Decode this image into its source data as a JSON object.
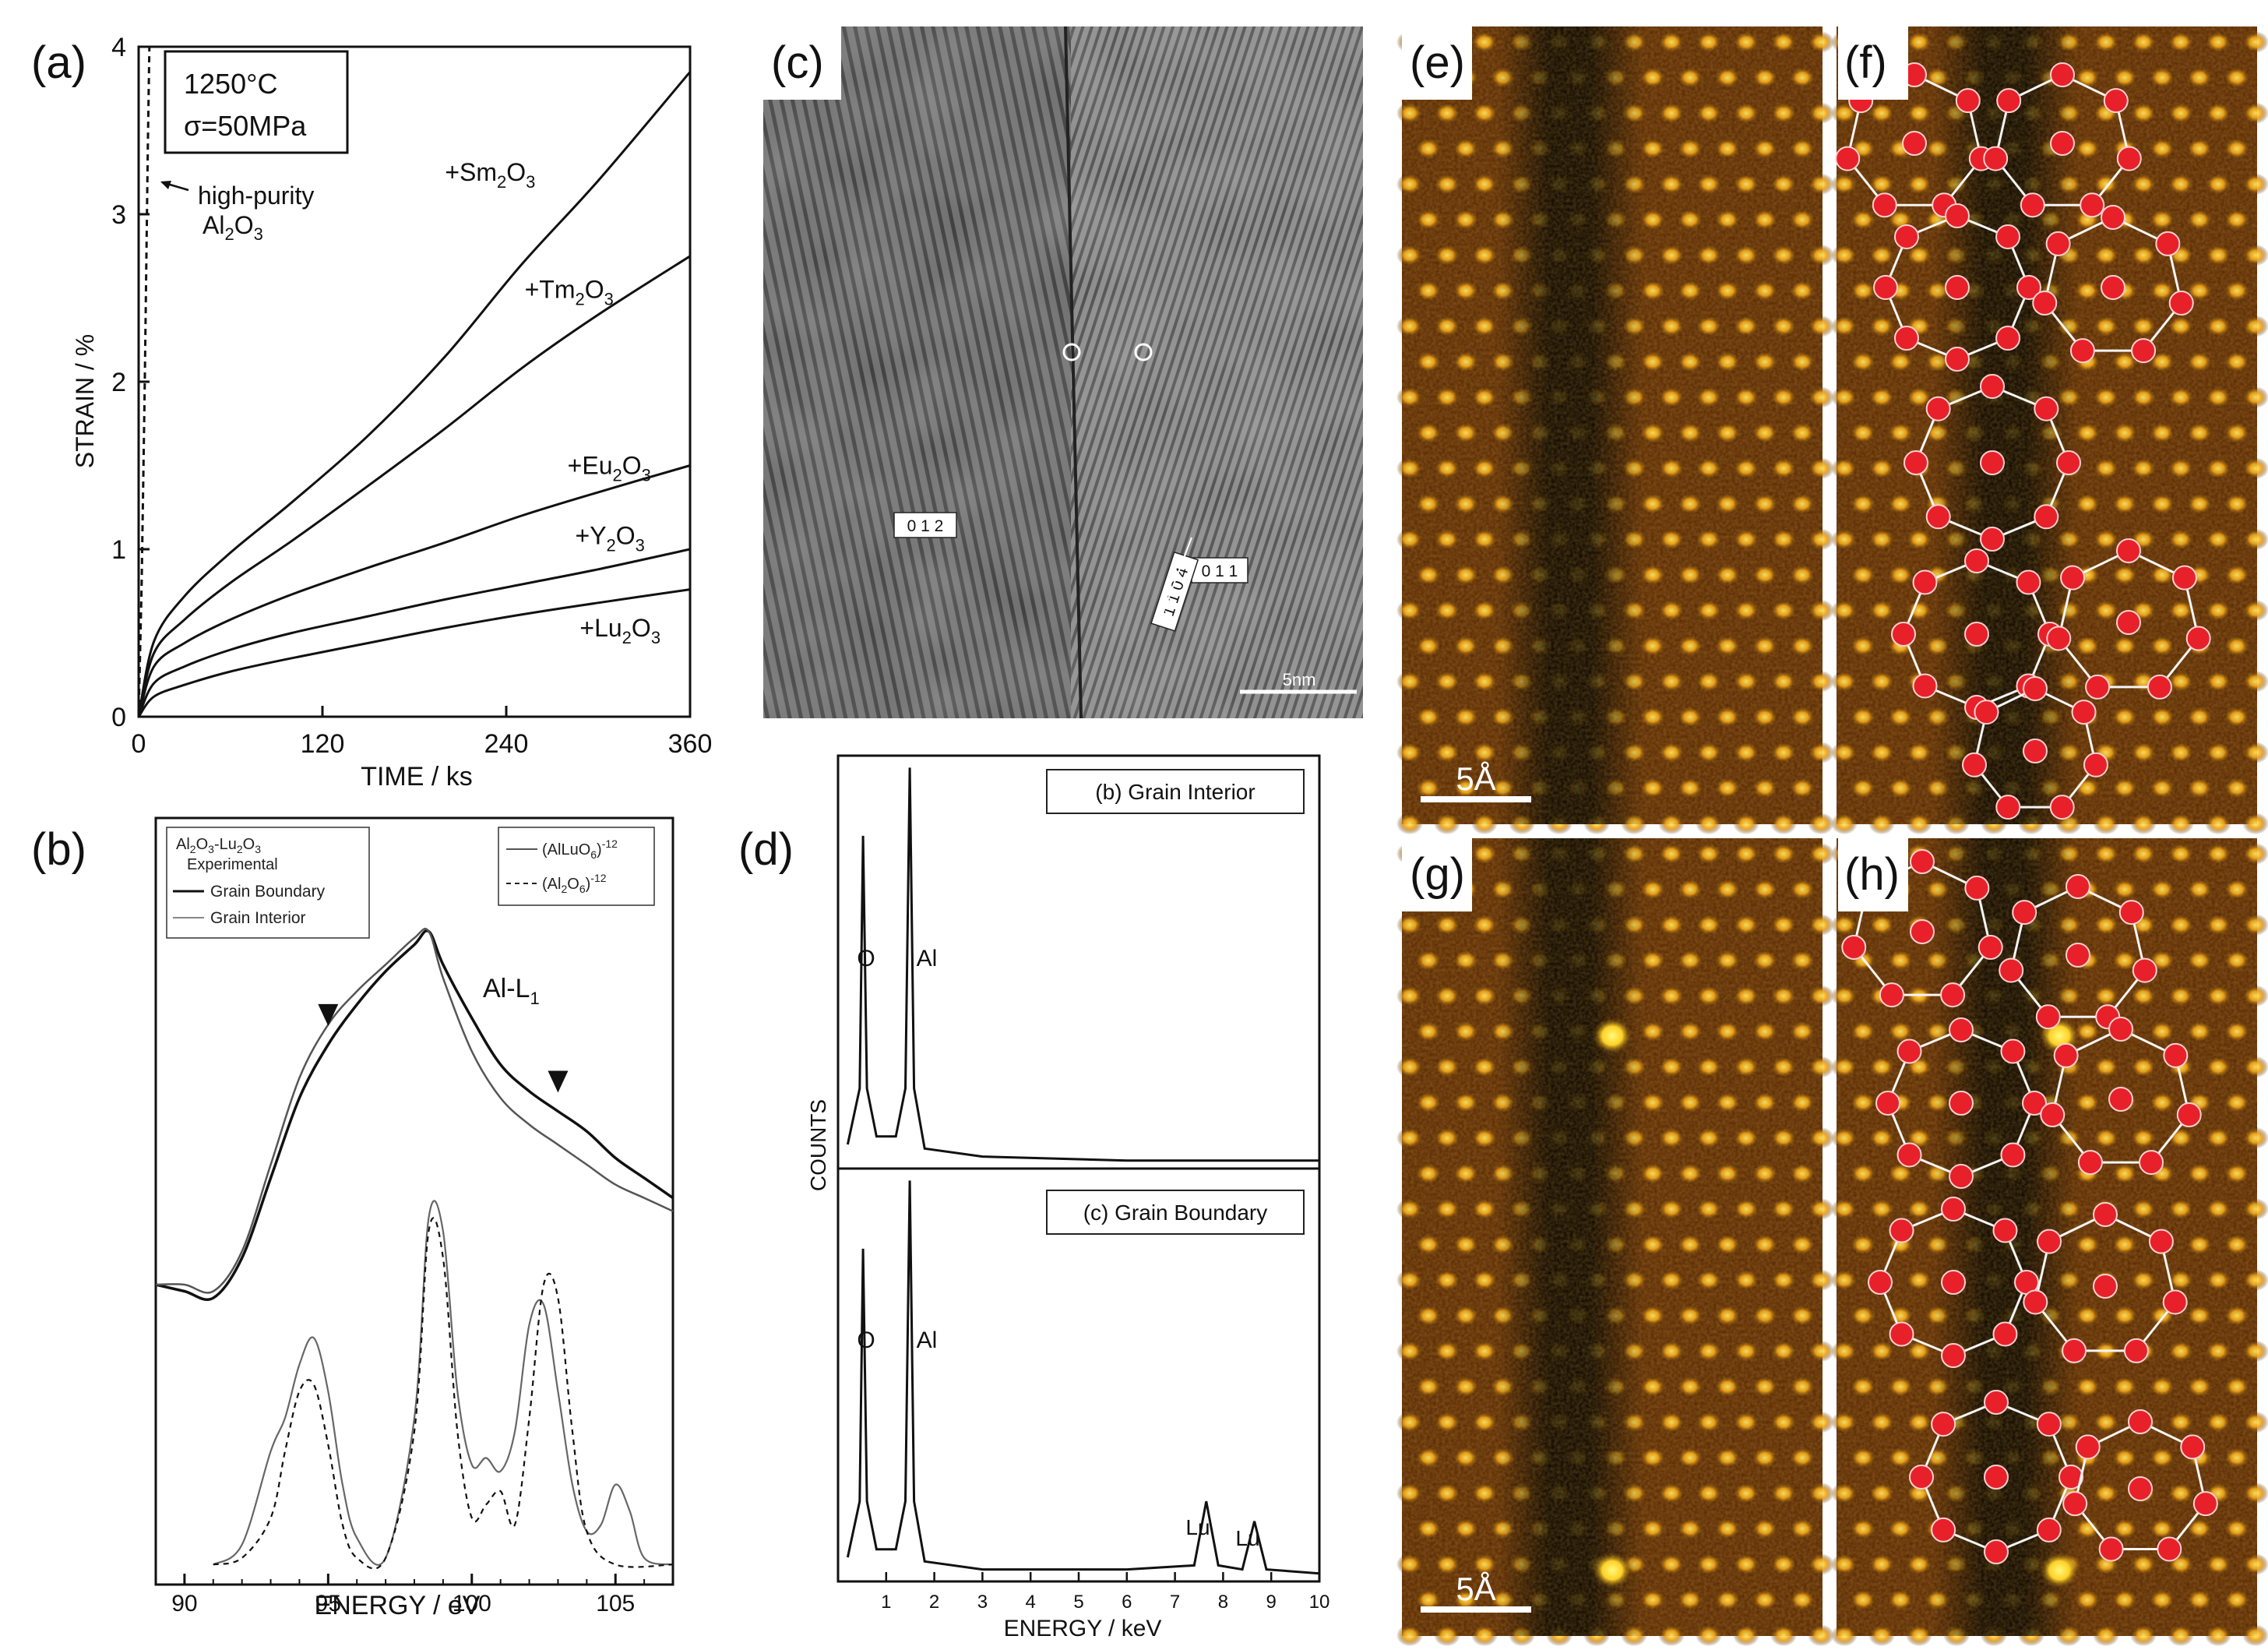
{
  "panel_labels": {
    "a": "(a)",
    "b": "(b)",
    "c": "(c)",
    "d": "(d)",
    "e": "(e)",
    "f": "(f)",
    "g": "(g)",
    "h": "(h)"
  },
  "panel_a": {
    "box_line1": "1250°C",
    "box_line2_sym": "σ",
    "box_line2_rest": "=50MPa",
    "annotation_line1": "high-purity",
    "annotation_line2_a": "Al",
    "annotation_line2_sub": "2",
    "annotation_line2_b": "O",
    "annotation_line2_sub2": "3"
  },
  "panel_b": {
    "legend_left_title_a": "Al",
    "legend_left_title_sub1": "2",
    "legend_left_title_b": "O",
    "legend_left_title_sub2": "3",
    "legend_left_title_c": "-Lu",
    "legend_left_title_sub3": "2",
    "legend_left_title_d": "O",
    "legend_left_title_sub4": "3",
    "legend_left_subtitle": "Experimental",
    "legend_left_entries": [
      "Grain Boundary",
      "Grain Interior"
    ],
    "legend_right_entries": [
      {
        "base": "(AlLuO",
        "sub": "6",
        "close": ")",
        "sup": "-12"
      },
      {
        "base": "(Al",
        "sub": "2",
        "mid": "O",
        "sub2": "6",
        "close": ")",
        "sup": "-12"
      }
    ],
    "edge_label": "Al-L",
    "edge_label_sub": "1"
  },
  "panel_c": {
    "indices": [
      "0 1 2",
      "0 1 1",
      "1 1 0 4"
    ],
    "scale_label": "5nm"
  },
  "panel_d": {
    "ylabel": "COUNTS",
    "top_title": "(b) Grain Interior",
    "bottom_title": "(c) Grain Boundary",
    "peak_O": "O",
    "peak_Al": "Al",
    "peak_Lu": "Lu"
  },
  "panels_e_h": {
    "scale_label": "5Å"
  },
  "chart_data": [
    {
      "id": "a",
      "type": "line",
      "xlabel": "TIME  /  ks",
      "ylabel": "STRAIN  /  %",
      "xlim": [
        0,
        360
      ],
      "ylim": [
        0,
        4
      ],
      "xticks": [
        0,
        120,
        240,
        360
      ],
      "yticks": [
        0,
        1,
        2,
        3,
        4
      ],
      "series": [
        {
          "name": "high-purity Al2O3",
          "label_main": "",
          "label_sub": "",
          "label_tail": "",
          "dashed": true,
          "x": [
            0,
            2,
            4,
            6,
            7
          ],
          "y": [
            0,
            0.8,
            2.0,
            3.4,
            4.0
          ]
        },
        {
          "name": "+Sm2O3",
          "label_main": "+Sm",
          "label_sub": "2",
          "label_tail": "O",
          "label_sub2": "3",
          "label_xy": [
            200,
            3.2
          ],
          "x": [
            0,
            10,
            30,
            60,
            100,
            150,
            200,
            250,
            300,
            360
          ],
          "y": [
            0,
            0.45,
            0.72,
            0.98,
            1.28,
            1.68,
            2.15,
            2.7,
            3.2,
            3.85
          ]
        },
        {
          "name": "+Tm2O3",
          "label_main": "+Tm",
          "label_sub": "2",
          "label_tail": "O",
          "label_sub2": "3",
          "label_xy": [
            252,
            2.5
          ],
          "x": [
            0,
            10,
            30,
            60,
            100,
            150,
            200,
            250,
            300,
            360
          ],
          "y": [
            0,
            0.38,
            0.58,
            0.8,
            1.05,
            1.38,
            1.72,
            2.08,
            2.4,
            2.75
          ]
        },
        {
          "name": "+Eu2O3",
          "label_main": "+Eu",
          "label_sub": "2",
          "label_tail": "O",
          "label_sub2": "3",
          "label_xy": [
            280,
            1.45
          ],
          "x": [
            0,
            10,
            30,
            60,
            100,
            150,
            200,
            250,
            300,
            360
          ],
          "y": [
            0,
            0.3,
            0.44,
            0.58,
            0.73,
            0.89,
            1.04,
            1.2,
            1.34,
            1.5
          ]
        },
        {
          "name": "+Y2O3",
          "label_main": "+Y",
          "label_sub": "2",
          "label_tail": "O",
          "label_sub2": "3",
          "label_xy": [
            285,
            1.03
          ],
          "x": [
            0,
            10,
            30,
            60,
            100,
            150,
            200,
            250,
            300,
            360
          ],
          "y": [
            0,
            0.2,
            0.3,
            0.4,
            0.5,
            0.6,
            0.7,
            0.79,
            0.88,
            1.0
          ]
        },
        {
          "name": "+Lu2O3",
          "label_main": "+Lu",
          "label_sub": "2",
          "label_tail": "O",
          "label_sub2": "3",
          "label_xy": [
            288,
            0.48
          ],
          "x": [
            0,
            10,
            30,
            60,
            100,
            150,
            200,
            250,
            300,
            360
          ],
          "y": [
            0,
            0.12,
            0.19,
            0.27,
            0.35,
            0.44,
            0.53,
            0.61,
            0.68,
            0.76
          ]
        }
      ]
    },
    {
      "id": "b",
      "type": "line",
      "xlabel": "ENERGY  /  eV",
      "ylabel": "",
      "xlim": [
        89,
        107
      ],
      "ylim": [
        0,
        1
      ],
      "xticks": [
        90,
        95,
        100,
        105
      ],
      "markers_x": [
        95,
        103
      ],
      "series": [
        {
          "name": "Grain Boundary",
          "dashed": false,
          "x": [
            89,
            90,
            91,
            92,
            93,
            94,
            95,
            96,
            97,
            98,
            98.5,
            99,
            100,
            101,
            102,
            103,
            104,
            105,
            106,
            107
          ],
          "y": [
            0.42,
            0.41,
            0.4,
            0.46,
            0.58,
            0.7,
            0.78,
            0.84,
            0.89,
            0.93,
            0.95,
            0.9,
            0.82,
            0.75,
            0.71,
            0.68,
            0.65,
            0.61,
            0.58,
            0.55
          ]
        },
        {
          "name": "Grain Interior",
          "dashed": false,
          "x": [
            89,
            90,
            91,
            92,
            93,
            94,
            95,
            96,
            97,
            98,
            98.5,
            99,
            100,
            101,
            102,
            103,
            104,
            105,
            106,
            107
          ],
          "y": [
            0.42,
            0.42,
            0.41,
            0.47,
            0.6,
            0.73,
            0.81,
            0.86,
            0.9,
            0.94,
            0.95,
            0.88,
            0.77,
            0.7,
            0.66,
            0.63,
            0.6,
            0.57,
            0.55,
            0.53
          ]
        },
        {
          "name": "(AlLuO6)-12",
          "dashed": false,
          "x": [
            91,
            92,
            93,
            93.5,
            94,
            94.5,
            95,
            95.5,
            96,
            97,
            98,
            98.5,
            99,
            99.5,
            100,
            100.5,
            101,
            101.5,
            102,
            102.5,
            103,
            103.5,
            104,
            104.5,
            105,
            105.5,
            106,
            107
          ],
          "y": [
            0,
            0.03,
            0.17,
            0.22,
            0.3,
            0.34,
            0.26,
            0.12,
            0.04,
            0.01,
            0.22,
            0.52,
            0.5,
            0.26,
            0.15,
            0.16,
            0.14,
            0.2,
            0.36,
            0.39,
            0.26,
            0.12,
            0.05,
            0.06,
            0.12,
            0.08,
            0.01,
            0
          ]
        },
        {
          "name": "(Al2O6)-12",
          "dashed": true,
          "x": [
            91,
            92,
            93,
            93.5,
            94,
            94.5,
            95,
            95.5,
            96,
            97,
            98,
            98.5,
            99,
            99.5,
            100,
            100.5,
            101,
            101.5,
            102,
            102.5,
            103,
            103.5,
            104,
            105,
            107
          ],
          "y": [
            0,
            0.01,
            0.07,
            0.17,
            0.26,
            0.27,
            0.18,
            0.06,
            0.01,
            0.01,
            0.2,
            0.5,
            0.46,
            0.2,
            0.07,
            0.09,
            0.11,
            0.06,
            0.22,
            0.42,
            0.4,
            0.2,
            0.05,
            0.0,
            0
          ]
        }
      ]
    },
    {
      "id": "d",
      "type": "line",
      "xlabel": "ENERGY  /  keV",
      "ylabel": "COUNTS",
      "xlim": [
        0,
        10
      ],
      "ylim": [
        0,
        1
      ],
      "xticks": [
        1,
        2,
        3,
        4,
        5,
        6,
        7,
        8,
        9,
        10
      ],
      "series": [
        {
          "name": "Grain Interior",
          "x": [
            0.2,
            0.45,
            0.52,
            0.6,
            0.8,
            1.2,
            1.4,
            1.49,
            1.58,
            1.8,
            3,
            6,
            10
          ],
          "y": [
            0.06,
            0.2,
            0.83,
            0.2,
            0.08,
            0.08,
            0.2,
            1.0,
            0.2,
            0.05,
            0.03,
            0.02,
            0.02
          ]
        },
        {
          "name": "Grain Boundary",
          "x": [
            0.2,
            0.45,
            0.52,
            0.6,
            0.8,
            1.2,
            1.4,
            1.49,
            1.58,
            1.8,
            3,
            6,
            7.4,
            7.65,
            7.9,
            8.4,
            8.65,
            8.9,
            10
          ],
          "y": [
            0.06,
            0.2,
            0.83,
            0.2,
            0.08,
            0.08,
            0.2,
            1.0,
            0.2,
            0.05,
            0.03,
            0.03,
            0.04,
            0.2,
            0.04,
            0.03,
            0.15,
            0.03,
            0.02
          ]
        }
      ]
    }
  ]
}
